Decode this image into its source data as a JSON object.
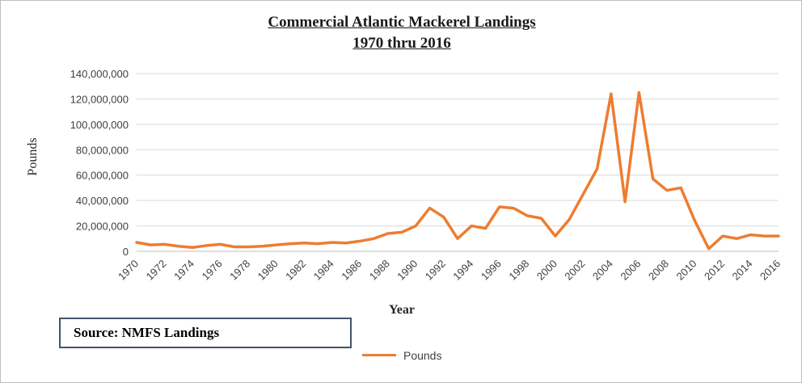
{
  "title": {
    "line1": "Commercial Atlantic Mackerel Landings",
    "line2": "1970 thru 2016"
  },
  "axes": {
    "y_label": "Pounds",
    "x_label": "Year"
  },
  "legend": {
    "label": "Pounds"
  },
  "source": {
    "text": "Source: NMFS Landings"
  },
  "colors": {
    "line": "#ed7d31",
    "grid": "#d9d9d9",
    "axis": "#bfbfbf",
    "tick_text": "#404040",
    "source_border": "#44546a"
  },
  "chart_data": {
    "type": "line",
    "title": "Commercial Atlantic Mackerel Landings 1970 thru 2016",
    "xlabel": "Year",
    "ylabel": "Pounds",
    "ylim": [
      0,
      140000000
    ],
    "y_tick_interval": 20000000,
    "grid": true,
    "legend_position": "bottom",
    "x": [
      1970,
      1971,
      1972,
      1973,
      1974,
      1975,
      1976,
      1977,
      1978,
      1979,
      1980,
      1981,
      1982,
      1983,
      1984,
      1985,
      1986,
      1987,
      1988,
      1989,
      1990,
      1991,
      1992,
      1993,
      1994,
      1995,
      1996,
      1997,
      1998,
      1999,
      2000,
      2001,
      2002,
      2003,
      2004,
      2005,
      2006,
      2007,
      2008,
      2009,
      2010,
      2011,
      2012,
      2013,
      2014,
      2015,
      2016
    ],
    "x_tick_labels": [
      "1970",
      "1972",
      "1974",
      "1976",
      "1978",
      "1980",
      "1982",
      "1984",
      "1986",
      "1988",
      "1990",
      "1992",
      "1994",
      "1996",
      "1998",
      "2000",
      "2002",
      "2004",
      "2006",
      "2008",
      "2010",
      "2012",
      "2014",
      "2016"
    ],
    "series": [
      {
        "name": "Pounds",
        "values": [
          7000000,
          5000000,
          5500000,
          4000000,
          3000000,
          4500000,
          5500000,
          3500000,
          3500000,
          4000000,
          5000000,
          6000000,
          6500000,
          6000000,
          7000000,
          6500000,
          8000000,
          10000000,
          14000000,
          15000000,
          20000000,
          34000000,
          27000000,
          10000000,
          20000000,
          18000000,
          35000000,
          34000000,
          28000000,
          26000000,
          12000000,
          25000000,
          45000000,
          65000000,
          124000000,
          39000000,
          125000000,
          57000000,
          48000000,
          50000000,
          24000000,
          2000000,
          12000000,
          10000000,
          13000000,
          12000000,
          12000000
        ]
      }
    ]
  }
}
